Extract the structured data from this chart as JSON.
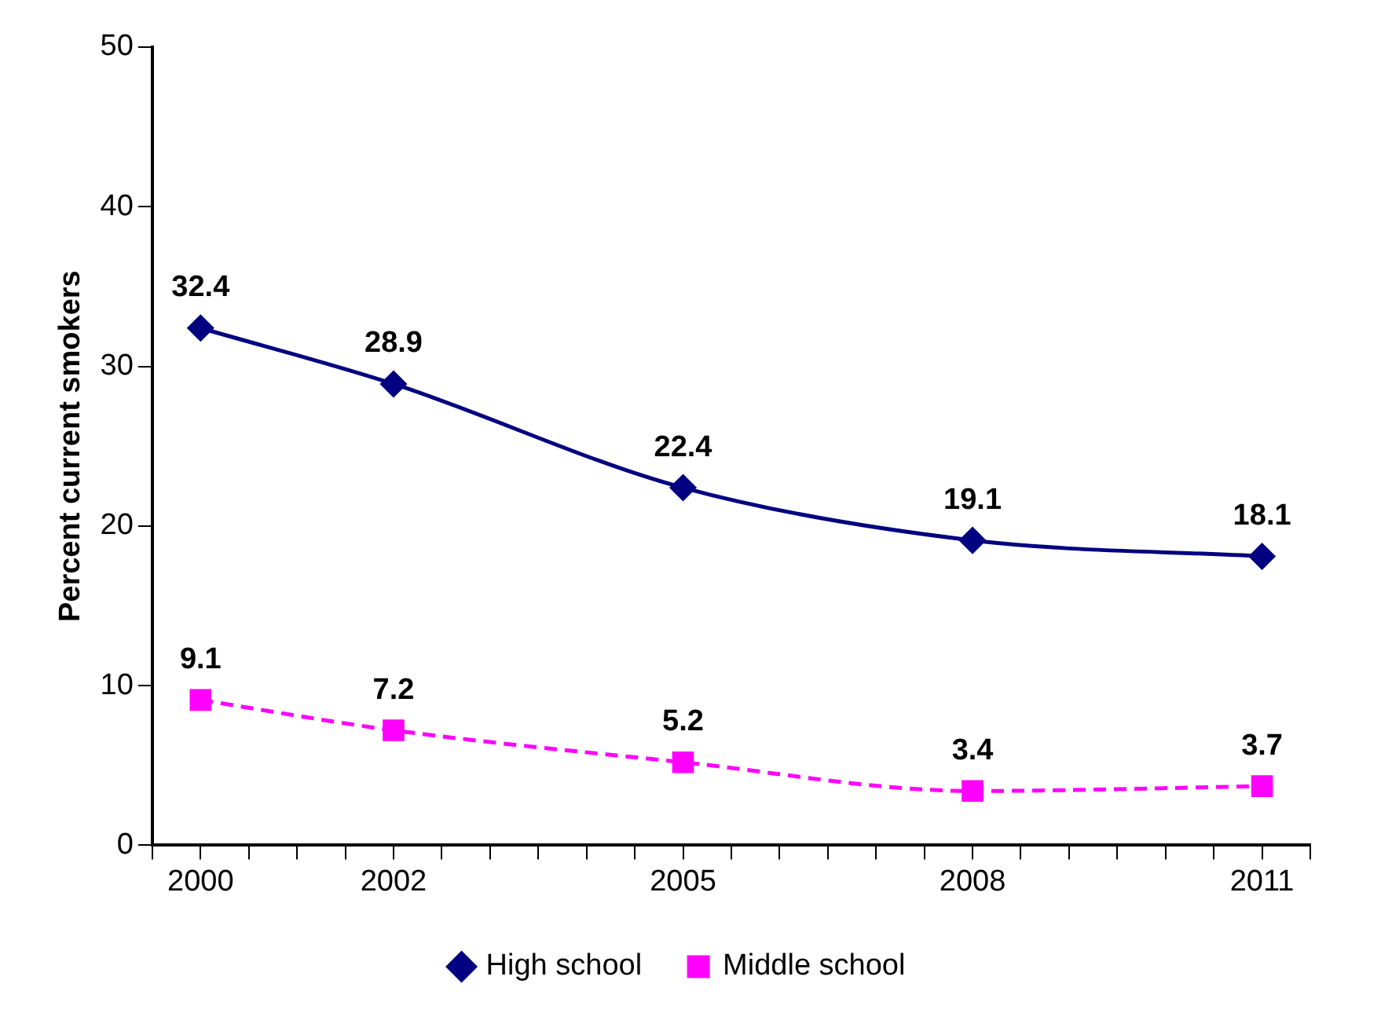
{
  "chart_data": {
    "type": "line",
    "ylabel": "Percent current smokers",
    "x": [
      2000,
      2002,
      2005,
      2008,
      2011
    ],
    "xlim": [
      1999.5,
      2011.5
    ],
    "xticks": [
      {
        "value": 1999.5,
        "label": null
      },
      2000,
      {
        "value": 2000.5,
        "label": null
      },
      {
        "value": 2001,
        "label": null
      },
      {
        "value": 2001.5,
        "label": null
      },
      2002,
      {
        "value": 2002.5,
        "label": null
      },
      {
        "value": 2003,
        "label": null
      },
      {
        "value": 2003.5,
        "label": null
      },
      {
        "value": 2004,
        "label": null
      },
      {
        "value": 2004.5,
        "label": null
      },
      2005,
      {
        "value": 2005.5,
        "label": null
      },
      {
        "value": 2006,
        "label": null
      },
      {
        "value": 2006.5,
        "label": null
      },
      {
        "value": 2007,
        "label": null
      },
      {
        "value": 2007.5,
        "label": null
      },
      2008,
      {
        "value": 2008.5,
        "label": null
      },
      {
        "value": 2009,
        "label": null
      },
      {
        "value": 2009.5,
        "label": null
      },
      {
        "value": 2010,
        "label": null
      },
      {
        "value": 2010.5,
        "label": null
      },
      2011,
      {
        "value": 2011.5,
        "label": null
      }
    ],
    "ylim": [
      0,
      50
    ],
    "yticks": [
      0,
      10,
      20,
      30,
      40,
      50
    ],
    "grid": false,
    "legend": "bottom",
    "data_labels": true,
    "series": [
      {
        "name": "High school",
        "color": "#000080",
        "values": [
          32.4,
          28.9,
          22.4,
          19.1,
          18.1
        ],
        "marker": "diamond",
        "line_style": "solid"
      },
      {
        "name": "Middle school",
        "color": "#ff00ff",
        "values": [
          9.1,
          7.2,
          5.2,
          3.4,
          3.7
        ],
        "marker": "square",
        "line_style": "dashed"
      }
    ]
  }
}
